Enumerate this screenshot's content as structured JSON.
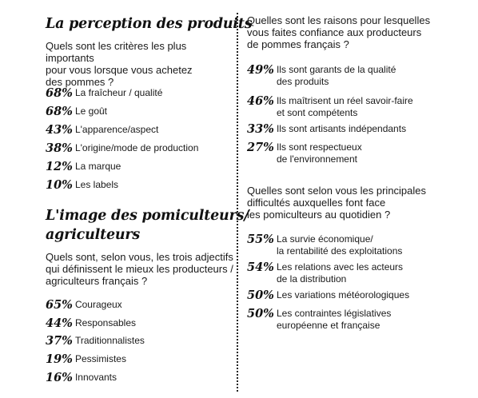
{
  "section1": {
    "title": "La perception des produits",
    "question": [
      "Quels sont les critères les plus importants",
      "pour vous lorsque vous achetez",
      "des pommes ?"
    ],
    "items": [
      {
        "pct": "68%",
        "label": "La fraîcheur / qualité"
      },
      {
        "pct": "68%",
        "label": "Le goût"
      },
      {
        "pct": "43%",
        "label": "L'apparence/aspect"
      },
      {
        "pct": "38%",
        "label": "L'origine/mode de production"
      },
      {
        "pct": "12%",
        "label": "La marque"
      },
      {
        "pct": "10%",
        "label": "Les labels"
      }
    ]
  },
  "section2": {
    "title": [
      "L'image des pomiculteurs/",
      "agriculteurs"
    ],
    "question": [
      "Quels sont, selon vous, les trois adjectifs",
      "qui définissent le mieux les producteurs /",
      "agriculteurs français ?"
    ],
    "items": [
      {
        "pct": "65%",
        "label": "Courageux"
      },
      {
        "pct": "44%",
        "label": "Responsables"
      },
      {
        "pct": "37%",
        "label": "Traditionnalistes"
      },
      {
        "pct": "19%",
        "label": "Pessimistes"
      },
      {
        "pct": "16%",
        "label": "Innovants"
      }
    ]
  },
  "section3": {
    "question": [
      "Quelles sont les raisons pour lesquelles",
      "vous faites confiance aux producteurs",
      "de pommes français ?"
    ],
    "items": [
      {
        "pct": "49%",
        "label1": "Ils sont garants de la qualité",
        "label2": "des produits"
      },
      {
        "pct": "46%",
        "label1": "Ils maîtrisent un réel savoir-faire",
        "label2": "et sont compétents"
      },
      {
        "pct": "33%",
        "label1": "Ils sont artisants indépendants",
        "label2": ""
      },
      {
        "pct": "27%",
        "label1": "Ils sont respectueux",
        "label2": "de l'environnement"
      }
    ]
  },
  "section4": {
    "question": [
      "Quelles sont selon vous les principales",
      "difficultés auxquelles font face",
      "les pomiculteurs au quotidien ?"
    ],
    "items": [
      {
        "pct": "55%",
        "label1": "La survie économique/",
        "label2": "la rentabilité des exploitations"
      },
      {
        "pct": "54%",
        "label1": "Les relations avec les acteurs",
        "label2": "de la distribution"
      },
      {
        "pct": "50%",
        "label1": "Les variations météorologiques",
        "label2": ""
      },
      {
        "pct": "50%",
        "label1": "Les contraintes législatives",
        "label2": "européenne et française"
      }
    ]
  }
}
